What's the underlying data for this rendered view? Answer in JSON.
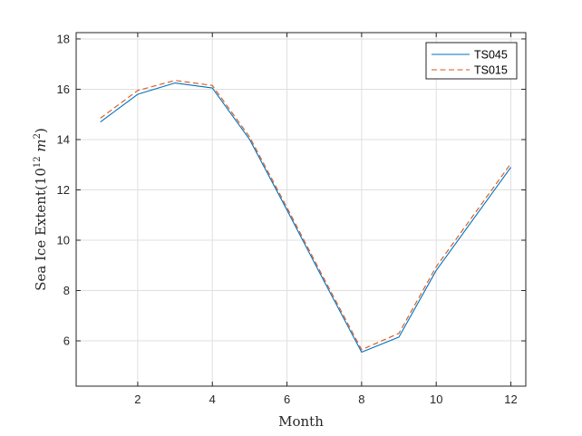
{
  "chart_data": {
    "type": "line",
    "xlabel": "Month",
    "ylabel_main": "Sea Ice Extent",
    "ylabel_unit_open": "(10",
    "ylabel_unit_exp": "12",
    "ylabel_unit_m": " m",
    "ylabel_unit_exp2": "2",
    "ylabel_unit_close": ")",
    "xlim": [
      0.35,
      12.4
    ],
    "ylim": [
      4.2,
      18.25
    ],
    "xticks": [
      2,
      4,
      6,
      8,
      10,
      12
    ],
    "yticks": [
      6,
      8,
      10,
      12,
      14,
      16,
      18
    ],
    "xtick_labels": [
      "2",
      "4",
      "6",
      "8",
      "10",
      "12"
    ],
    "ytick_labels": [
      "6",
      "8",
      "10",
      "12",
      "14",
      "16",
      "18"
    ],
    "grid": true,
    "legend_position": "top-right",
    "x": [
      1,
      2,
      3,
      4,
      5,
      6,
      7,
      8,
      9,
      10,
      11,
      12
    ],
    "series": [
      {
        "name": "TS045",
        "color": "#0072bd",
        "style": "solid",
        "values": [
          14.7,
          15.8,
          16.25,
          16.05,
          14.0,
          11.2,
          8.35,
          5.55,
          6.15,
          8.8,
          10.85,
          12.9
        ]
      },
      {
        "name": "TS015",
        "color": "#d95319",
        "style": "dashed",
        "values": [
          14.85,
          15.95,
          16.35,
          16.15,
          14.1,
          11.3,
          8.45,
          5.65,
          6.3,
          8.95,
          11.0,
          13.05
        ]
      }
    ]
  }
}
